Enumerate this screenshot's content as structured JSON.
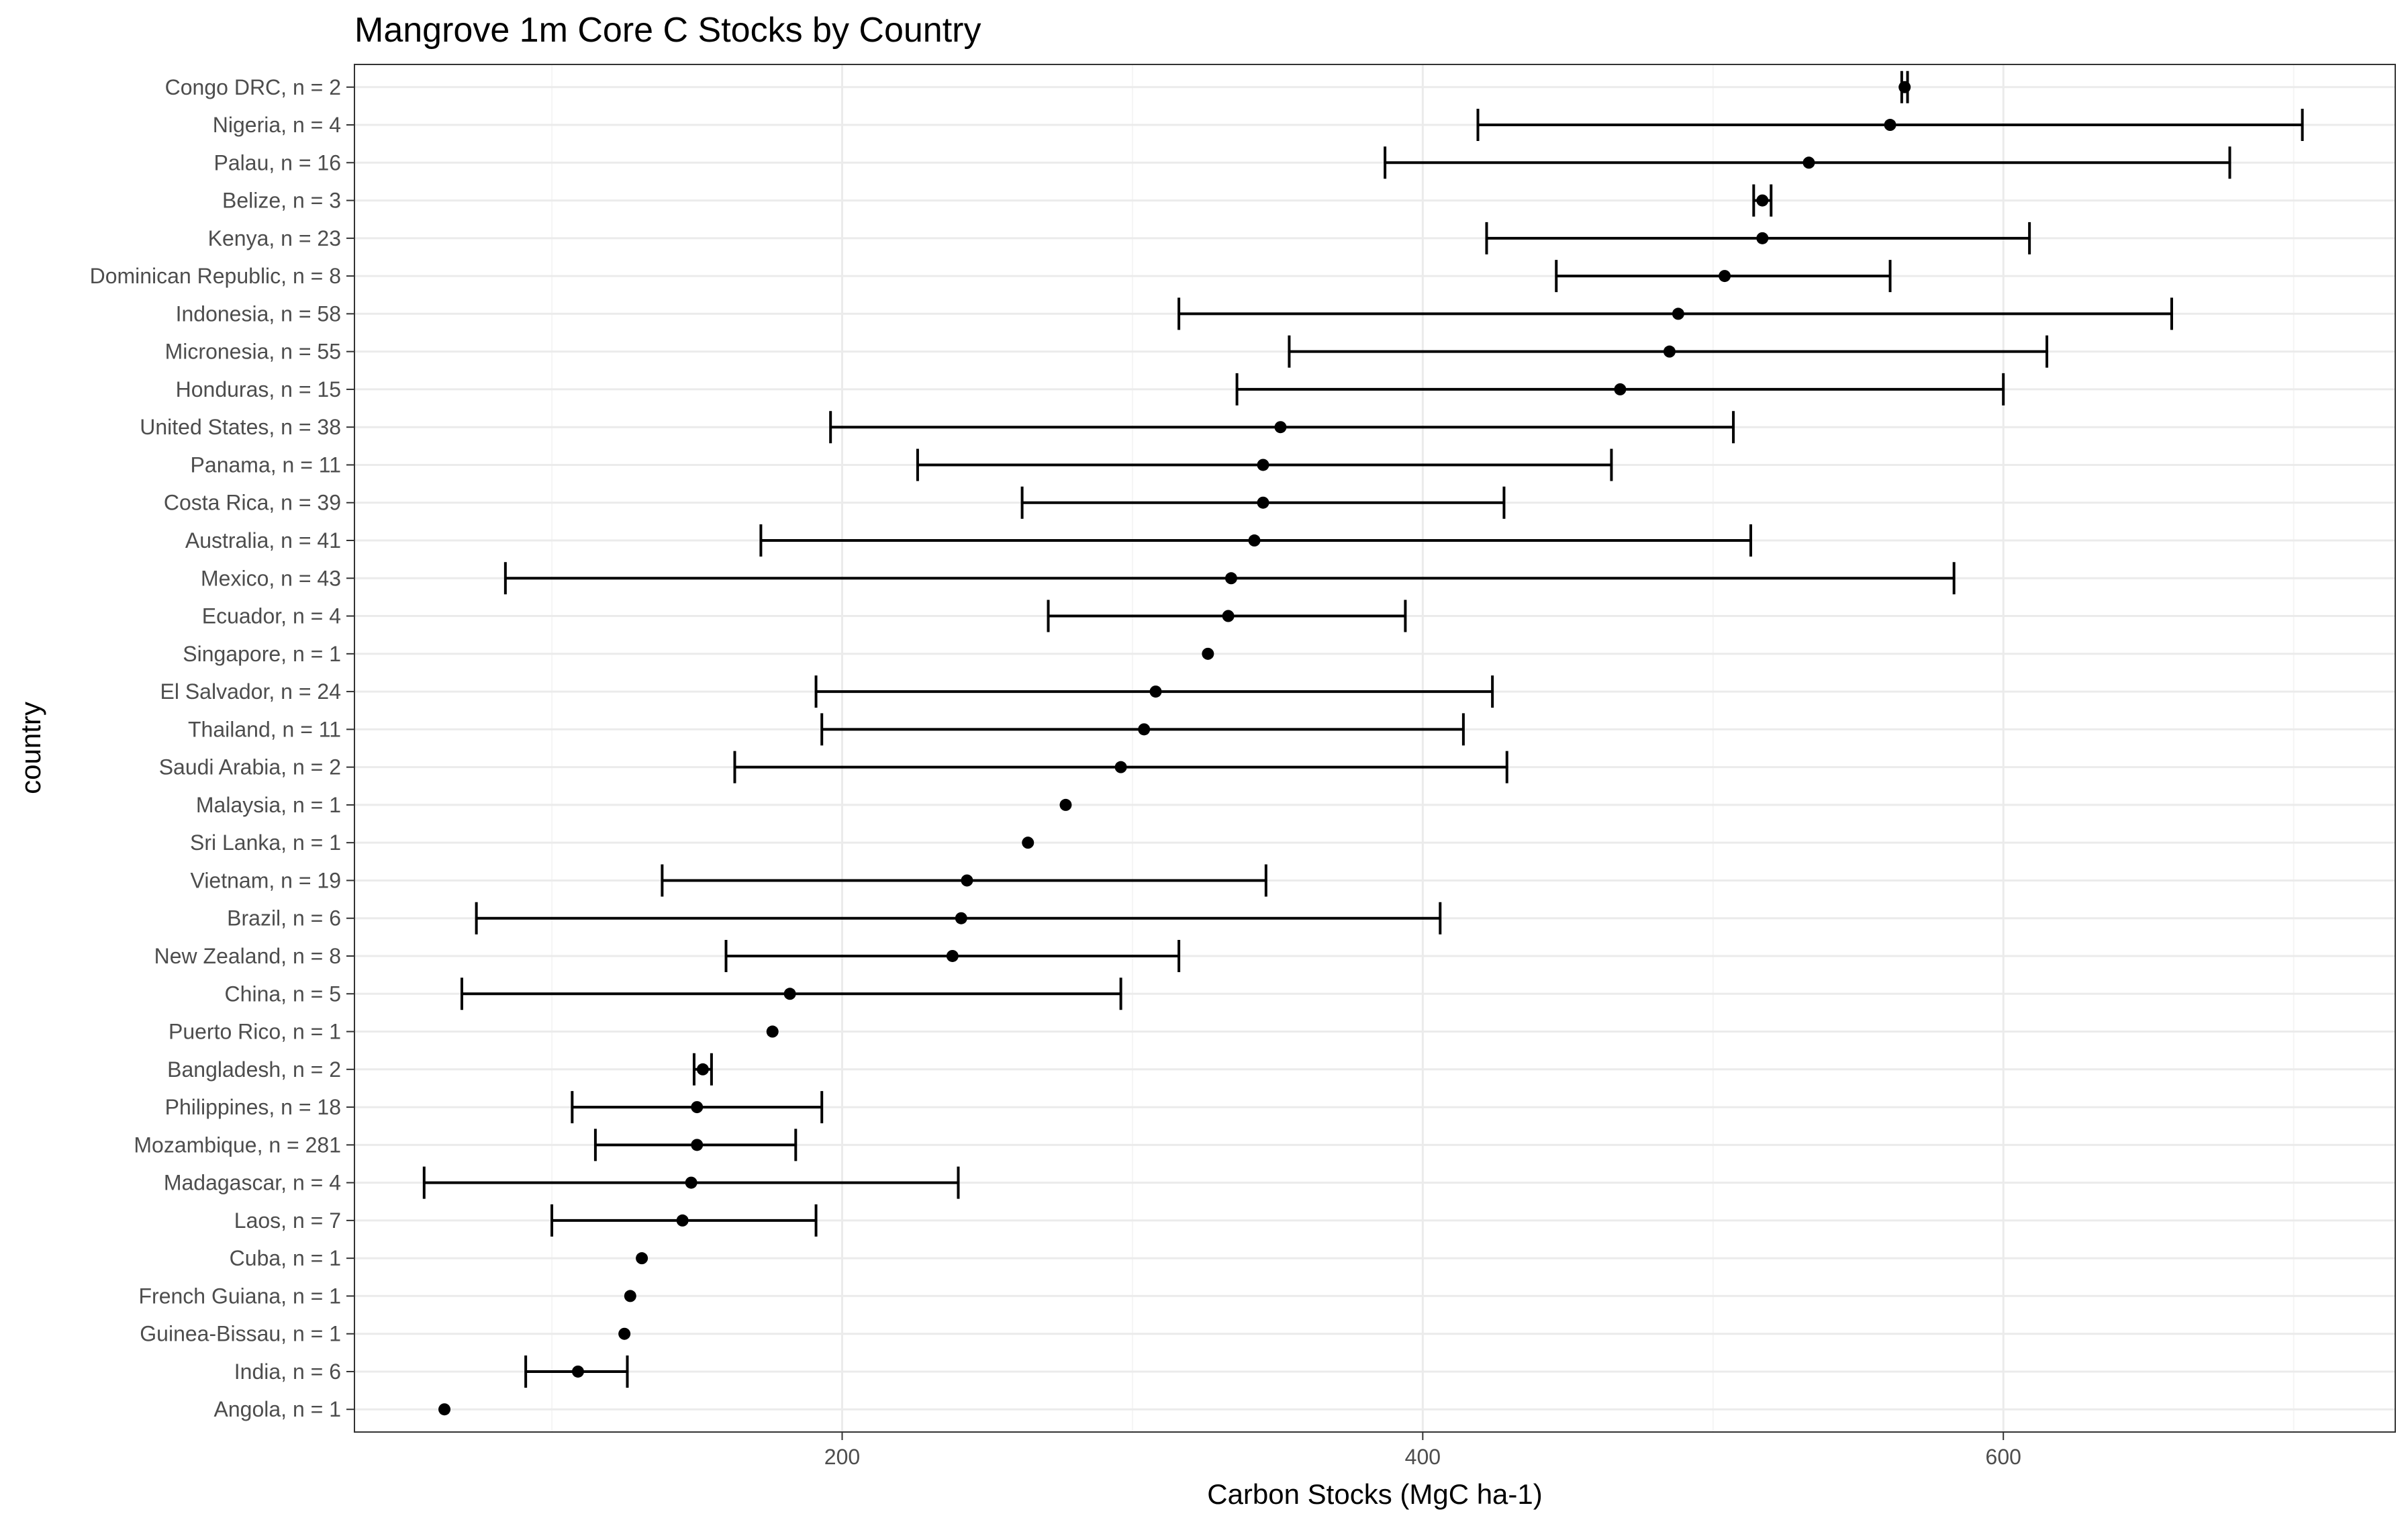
{
  "chart_data": {
    "type": "scatter",
    "title": "Mangrove 1m Core C Stocks by Country",
    "xlabel": "Carbon Stocks (MgC ha-1)",
    "ylabel": "country",
    "xlim": [
      32,
      735
    ],
    "x_ticks": [
      200,
      400,
      600
    ],
    "grid": true,
    "legend": "none",
    "colors": {
      "point": "#000000",
      "errorbar": "#000000",
      "grid_major": "#ebebeb",
      "grid_minor": "#f5f5f5",
      "panel_border": "#333333"
    },
    "series": [
      {
        "values": [
          {
            "country": "Congo DRC, n = 2",
            "mean": 566,
            "lower": 565,
            "upper": 567
          },
          {
            "country": "Nigeria, n = 4",
            "mean": 561,
            "lower": 419,
            "upper": 703
          },
          {
            "country": "Palau, n = 16",
            "mean": 533,
            "lower": 387,
            "upper": 678
          },
          {
            "country": "Belize, n = 3",
            "mean": 517,
            "lower": 514,
            "upper": 520
          },
          {
            "country": "Kenya, n = 23",
            "mean": 517,
            "lower": 422,
            "upper": 609
          },
          {
            "country": "Dominican Republic, n = 8",
            "mean": 504,
            "lower": 446,
            "upper": 561
          },
          {
            "country": "Indonesia, n = 58",
            "mean": 488,
            "lower": 316,
            "upper": 658
          },
          {
            "country": "Micronesia, n = 55",
            "mean": 485,
            "lower": 354,
            "upper": 615
          },
          {
            "country": "Honduras, n = 15",
            "mean": 468,
            "lower": 336,
            "upper": 600
          },
          {
            "country": "United States, n = 38",
            "mean": 351,
            "lower": 196,
            "upper": 507
          },
          {
            "country": "Panama, n = 11",
            "mean": 345,
            "lower": 226,
            "upper": 465
          },
          {
            "country": "Costa Rica, n = 39",
            "mean": 345,
            "lower": 262,
            "upper": 428
          },
          {
            "country": "Australia, n = 41",
            "mean": 342,
            "lower": 172,
            "upper": 513
          },
          {
            "country": "Mexico, n = 43",
            "mean": 334,
            "lower": 84,
            "upper": 583
          },
          {
            "country": "Ecuador, n = 4",
            "mean": 333,
            "lower": 271,
            "upper": 394
          },
          {
            "country": "Singapore, n = 1",
            "mean": 326,
            "lower": null,
            "upper": null
          },
          {
            "country": "El Salvador, n = 24",
            "mean": 308,
            "lower": 191,
            "upper": 424
          },
          {
            "country": "Thailand, n = 11",
            "mean": 304,
            "lower": 193,
            "upper": 414
          },
          {
            "country": "Saudi Arabia, n = 2",
            "mean": 296,
            "lower": 163,
            "upper": 429
          },
          {
            "country": "Malaysia, n = 1",
            "mean": 277,
            "lower": null,
            "upper": null
          },
          {
            "country": "Sri Lanka, n = 1",
            "mean": 264,
            "lower": null,
            "upper": null
          },
          {
            "country": "Vietnam, n = 19",
            "mean": 243,
            "lower": 138,
            "upper": 346
          },
          {
            "country": "Brazil, n = 6",
            "mean": 241,
            "lower": 74,
            "upper": 406
          },
          {
            "country": "New Zealand, n = 8",
            "mean": 238,
            "lower": 160,
            "upper": 316
          },
          {
            "country": "China, n = 5",
            "mean": 182,
            "lower": 69,
            "upper": 296
          },
          {
            "country": "Puerto Rico, n = 1",
            "mean": 176,
            "lower": null,
            "upper": null
          },
          {
            "country": "Bangladesh, n = 2",
            "mean": 152,
            "lower": 149,
            "upper": 155
          },
          {
            "country": "Philippines, n = 18",
            "mean": 150,
            "lower": 107,
            "upper": 193
          },
          {
            "country": "Mozambique, n = 281",
            "mean": 150,
            "lower": 115,
            "upper": 184
          },
          {
            "country": "Madagascar, n = 4",
            "mean": 148,
            "lower": 56,
            "upper": 240
          },
          {
            "country": "Laos, n = 7",
            "mean": 145,
            "lower": 100,
            "upper": 191
          },
          {
            "country": "Cuba, n = 1",
            "mean": 131,
            "lower": null,
            "upper": null
          },
          {
            "country": "French Guiana, n = 1",
            "mean": 127,
            "lower": null,
            "upper": null
          },
          {
            "country": "Guinea-Bissau, n = 1",
            "mean": 125,
            "lower": null,
            "upper": null
          },
          {
            "country": "India, n = 6",
            "mean": 109,
            "lower": 91,
            "upper": 126
          },
          {
            "country": "Angola, n = 1",
            "mean": 63,
            "lower": null,
            "upper": null
          }
        ]
      }
    ]
  }
}
